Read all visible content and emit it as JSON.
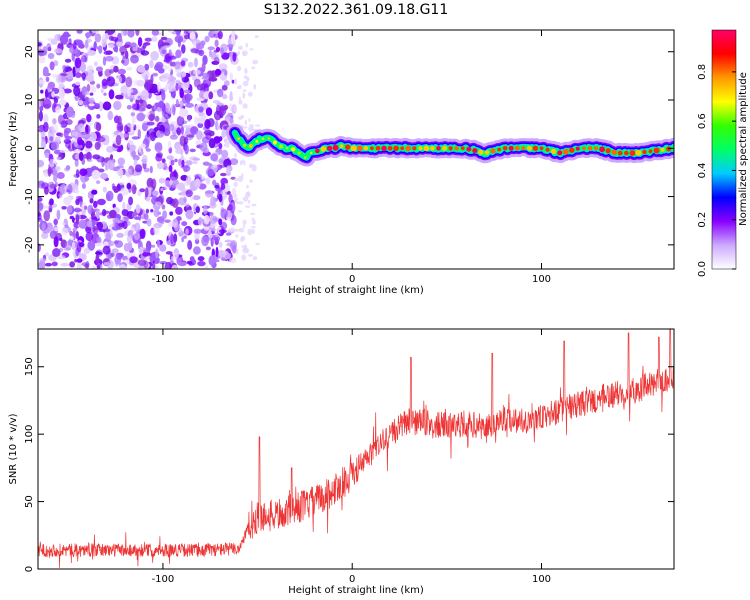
{
  "title": "S132.2022.361.09.18.G11",
  "chart_data": [
    {
      "type": "heatmap",
      "xlabel": "Height of straight line (km)",
      "ylabel": "Frequency (Hz)",
      "xlim": [
        -166,
        170
      ],
      "ylim": [
        -25,
        24.5
      ],
      "xticks": [
        -100,
        0,
        100
      ],
      "yticks": [
        -20,
        -10,
        0,
        10,
        20
      ],
      "grid": false,
      "colorbar": {
        "label": "Normalized spectral amplitude",
        "range": [
          0.0,
          0.97
        ],
        "ticks": [
          0.0,
          0.2,
          0.4,
          0.6,
          0.8
        ],
        "tick_labels": [
          "0.0",
          "0.2",
          "0.4",
          "0.6",
          "0.8"
        ],
        "colormap": [
          "#ffffff",
          "#ccaaff",
          "#8800ff",
          "#0000ff",
          "#00ccff",
          "#00ff66",
          "#33ff00",
          "#ffff00",
          "#ff9900",
          "#ff0000",
          "#ff0066"
        ]
      },
      "noise_region_x": [
        -166,
        -62
      ],
      "ridge": {
        "x": [
          -62,
          -58,
          -55,
          -52,
          -48,
          -44,
          -40,
          -36,
          -32,
          -28,
          -25,
          -22,
          -18,
          -14,
          -10,
          -5,
          0,
          10,
          20,
          30,
          40,
          50,
          60,
          70,
          80,
          90,
          100,
          110,
          120,
          130,
          140,
          150,
          160,
          170
        ],
        "y": [
          3,
          1,
          0,
          1,
          2,
          2,
          1,
          0,
          0,
          -1,
          -2,
          -1,
          -0.5,
          0,
          0,
          0.5,
          0,
          0,
          0,
          0,
          0,
          0,
          0,
          -1,
          0,
          0,
          0,
          -1,
          0,
          0,
          -1,
          -1,
          -0.5,
          0
        ]
      }
    },
    {
      "type": "line",
      "xlabel": "Height of straight line (km)",
      "ylabel": "SNR (10 * v/v)",
      "xlim": [
        -166,
        170
      ],
      "ylim": [
        0,
        178
      ],
      "xticks": [
        -100,
        0,
        100
      ],
      "yticks": [
        0,
        50,
        100,
        150
      ],
      "grid": false,
      "color": "#ee3333",
      "trend": {
        "x": [
          -166,
          -120,
          -80,
          -60,
          -55,
          -50,
          -40,
          -30,
          -20,
          -10,
          0,
          10,
          20,
          30,
          40,
          50,
          60,
          70,
          80,
          90,
          100,
          110,
          120,
          130,
          140,
          150,
          160,
          170
        ],
        "y": [
          14,
          14,
          14,
          15,
          30,
          38,
          40,
          45,
          50,
          58,
          70,
          85,
          100,
          110,
          108,
          106,
          108,
          105,
          112,
          110,
          112,
          118,
          122,
          126,
          130,
          133,
          138,
          142
        ]
      },
      "spikes": [
        {
          "x": -49,
          "y": 98
        },
        {
          "x": -32,
          "y": 75
        },
        {
          "x": 31,
          "y": 157
        },
        {
          "x": 74,
          "y": 160
        },
        {
          "x": 112,
          "y": 169
        },
        {
          "x": 146,
          "y": 175
        },
        {
          "x": 162,
          "y": 172
        },
        {
          "x": 168,
          "y": 178
        }
      ]
    }
  ]
}
